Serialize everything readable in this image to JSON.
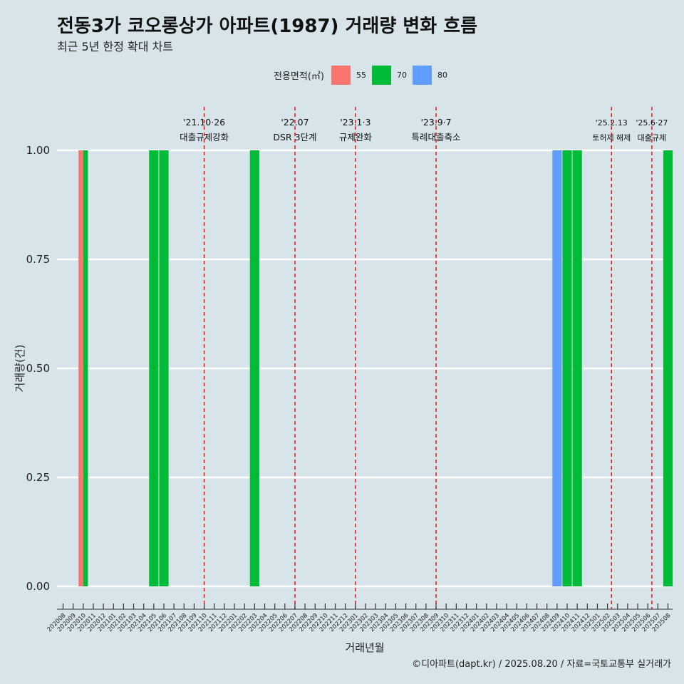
{
  "title": "전동3가 코오롱상가 아파트(1987) 거래량 변화 흐름",
  "subtitle": "최근 5년 한정 확대 차트",
  "caption": "©디아파트(dapt.kr) / 2025.08.20 / 자료=국토교통부 실거래가",
  "legend": {
    "title": "전용면적(㎡)",
    "items": [
      {
        "label": "55",
        "color": "#f8766d"
      },
      {
        "label": "70",
        "color": "#00ba38"
      },
      {
        "label": "80",
        "color": "#619cff"
      }
    ]
  },
  "chart_data": {
    "type": "bar",
    "xlabel": "거래년월",
    "ylabel": "거래량(건)",
    "ylim": [
      0,
      1
    ],
    "y_ticks": [
      "0.00",
      "0.25",
      "0.50",
      "0.75",
      "1.00"
    ],
    "categories": [
      "202008",
      "202009",
      "202010",
      "202011",
      "202012",
      "202101",
      "202102",
      "202103",
      "202104",
      "202105",
      "202106",
      "202107",
      "202108",
      "202109",
      "202110",
      "202111",
      "202112",
      "202201",
      "202202",
      "202203",
      "202204",
      "202205",
      "202206",
      "202207",
      "202208",
      "202209",
      "202210",
      "202211",
      "202212",
      "202301",
      "202302",
      "202303",
      "202304",
      "202305",
      "202306",
      "202307",
      "202308",
      "202309",
      "202310",
      "202311",
      "202312",
      "202401",
      "202402",
      "202403",
      "202404",
      "202405",
      "202406",
      "202407",
      "202408",
      "202409",
      "202410",
      "202411",
      "202412",
      "202501",
      "202502",
      "202503",
      "202504",
      "202505",
      "202506",
      "202507",
      "202508"
    ],
    "bars": [
      {
        "x": "202010",
        "series": "55",
        "value": 1
      },
      {
        "x": "202010",
        "series": "70",
        "value": 1
      },
      {
        "x": "202105",
        "series": "70",
        "value": 1
      },
      {
        "x": "202106",
        "series": "70",
        "value": 1
      },
      {
        "x": "202203",
        "series": "70",
        "value": 1
      },
      {
        "x": "202409",
        "series": "80",
        "value": 1
      },
      {
        "x": "202410",
        "series": "70",
        "value": 1
      },
      {
        "x": "202411",
        "series": "70",
        "value": 1
      },
      {
        "x": "202508",
        "series": "70",
        "value": 1
      }
    ],
    "events": [
      {
        "at": 14.0,
        "date": "'21.10·26",
        "label": "대출규제강화"
      },
      {
        "at": 23.0,
        "date": "'22.07",
        "label": "DSR 3단계"
      },
      {
        "at": 29.0,
        "date": "'23.1·3",
        "label": "규제완화"
      },
      {
        "at": 37.0,
        "date": "'23.9·7",
        "label": "특례대출축소"
      },
      {
        "at": 54.4,
        "date": "'25.2.13",
        "label": "토허제 해제"
      },
      {
        "at": 58.4,
        "date": "'25.6·27",
        "label": "대출규제"
      }
    ],
    "grid": true
  }
}
